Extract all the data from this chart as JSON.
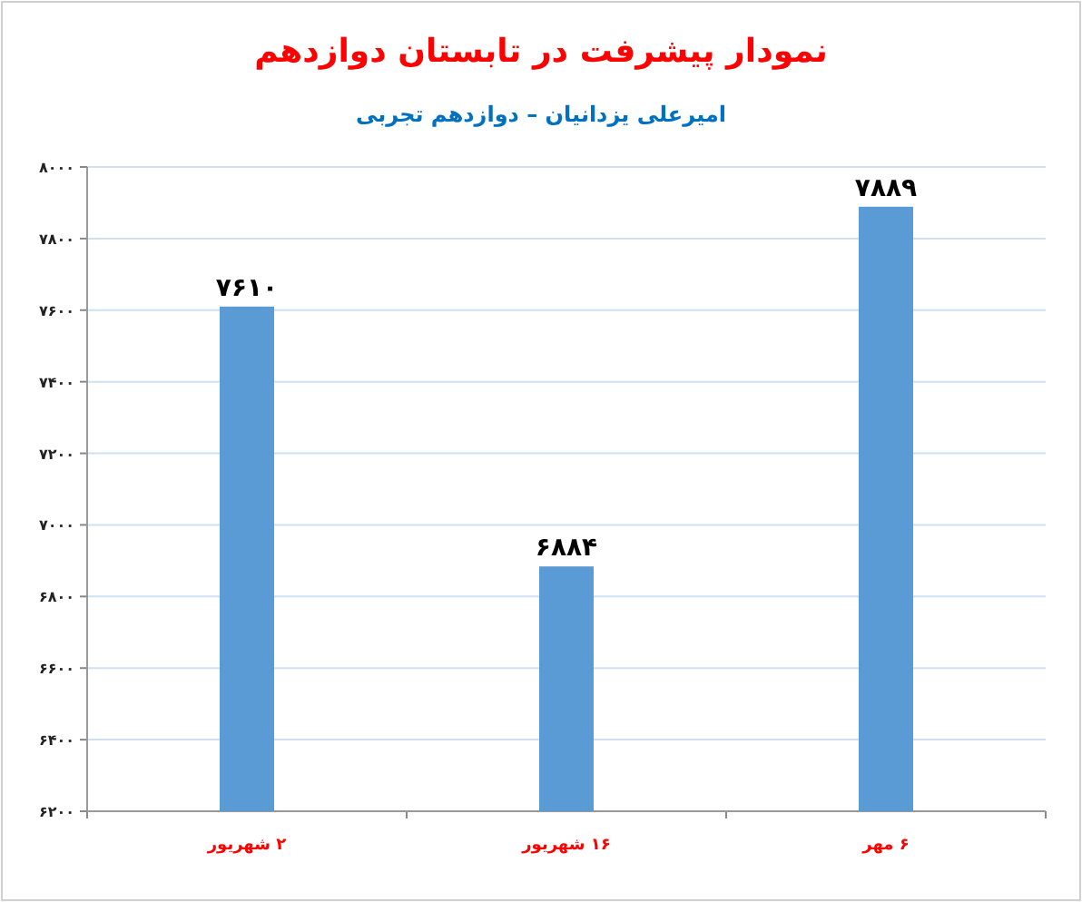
{
  "chart_data": {
    "type": "bar",
    "title": "نمودار پیشرفت در تابستان دوازدهم",
    "subtitle": "امیرعلی یزدانیان – دوازدهم تجربی",
    "categories": [
      "۲ شهریور",
      "۱۶ شهریور",
      "۶ مهر"
    ],
    "values": [
      7610,
      6884,
      7889
    ],
    "color": "#5b9bd5",
    "value_labels": [
      "۷۶۱۰",
      "۶۸۸۴",
      "۷۸۸۹"
    ],
    "ylim": [
      6200,
      8000
    ],
    "yticks": [
      {
        "value": 6200,
        "label": "۶۲۰۰"
      },
      {
        "value": 6400,
        "label": "۶۴۰۰"
      },
      {
        "value": 6600,
        "label": "۶۶۰۰"
      },
      {
        "value": 6800,
        "label": "۶۸۰۰"
      },
      {
        "value": 7000,
        "label": "۷۰۰۰"
      },
      {
        "value": 7200,
        "label": "۷۲۰۰"
      },
      {
        "value": 7400,
        "label": "۷۴۰۰"
      },
      {
        "value": 7600,
        "label": "۷۶۰۰"
      },
      {
        "value": 7800,
        "label": "۷۸۰۰"
      },
      {
        "value": 8000,
        "label": "۸۰۰۰"
      }
    ],
    "grid": "y"
  }
}
